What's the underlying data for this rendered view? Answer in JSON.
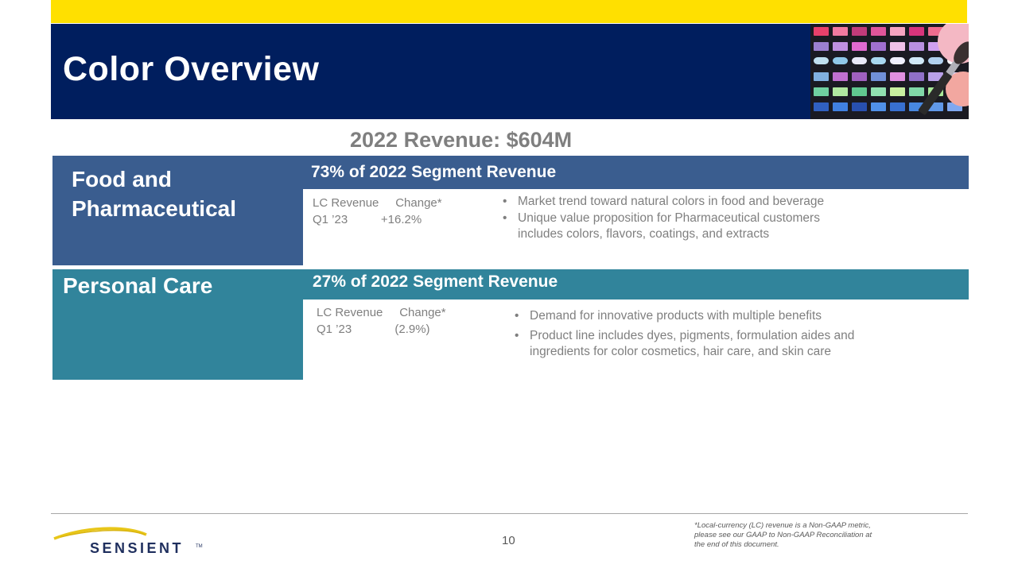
{
  "header": {
    "title": "Color Overview",
    "palette_image": "eyeshadow-palette-with-brush"
  },
  "summary": {
    "revenue_heading": "2022 Revenue: $604M"
  },
  "segments": [
    {
      "name_line1": "Food and",
      "name_line2": "Pharmaceutical",
      "share_heading": "73%  of 2022 Segment Revenue",
      "metric_labels": "LC Revenue     Change*",
      "metric_values": "Q1 ’23          +16.2%",
      "bullets": [
        "Market trend toward natural colors in food and beverage",
        "Unique value proposition for Pharmaceutical customers",
        "includes colors, flavors, coatings, and extracts"
      ],
      "color": "#3a5d8f"
    },
    {
      "name_line1": "Personal Care",
      "share_heading": "27%  of 2022 Segment Revenue",
      "metric_labels": "LC Revenue     Change*",
      "metric_values": "Q1 ’23             (2.9%)",
      "bullets": [
        "Demand for innovative products with multiple benefits",
        "Product line includes dyes, pigments, formulation aides and",
        "ingredients for color cosmetics, hair care, and skin care"
      ],
      "color": "#31849b"
    }
  ],
  "footer": {
    "page_number": "10",
    "logo_text": "SENSIENT",
    "logo_tm": "TM",
    "footnote_line1": "*Local-currency (LC) revenue is a Non-GAAP metric,",
    "footnote_line2": "please see our GAAP to Non-GAAP Reconciliation at",
    "footnote_line3": "the end of this document."
  },
  "colors": {
    "accent_yellow": "#ffe000",
    "title_navy": "#001e5e",
    "food_blue": "#3a5d8f",
    "care_teal": "#31849b",
    "text_gray": "#7f7f7f"
  }
}
